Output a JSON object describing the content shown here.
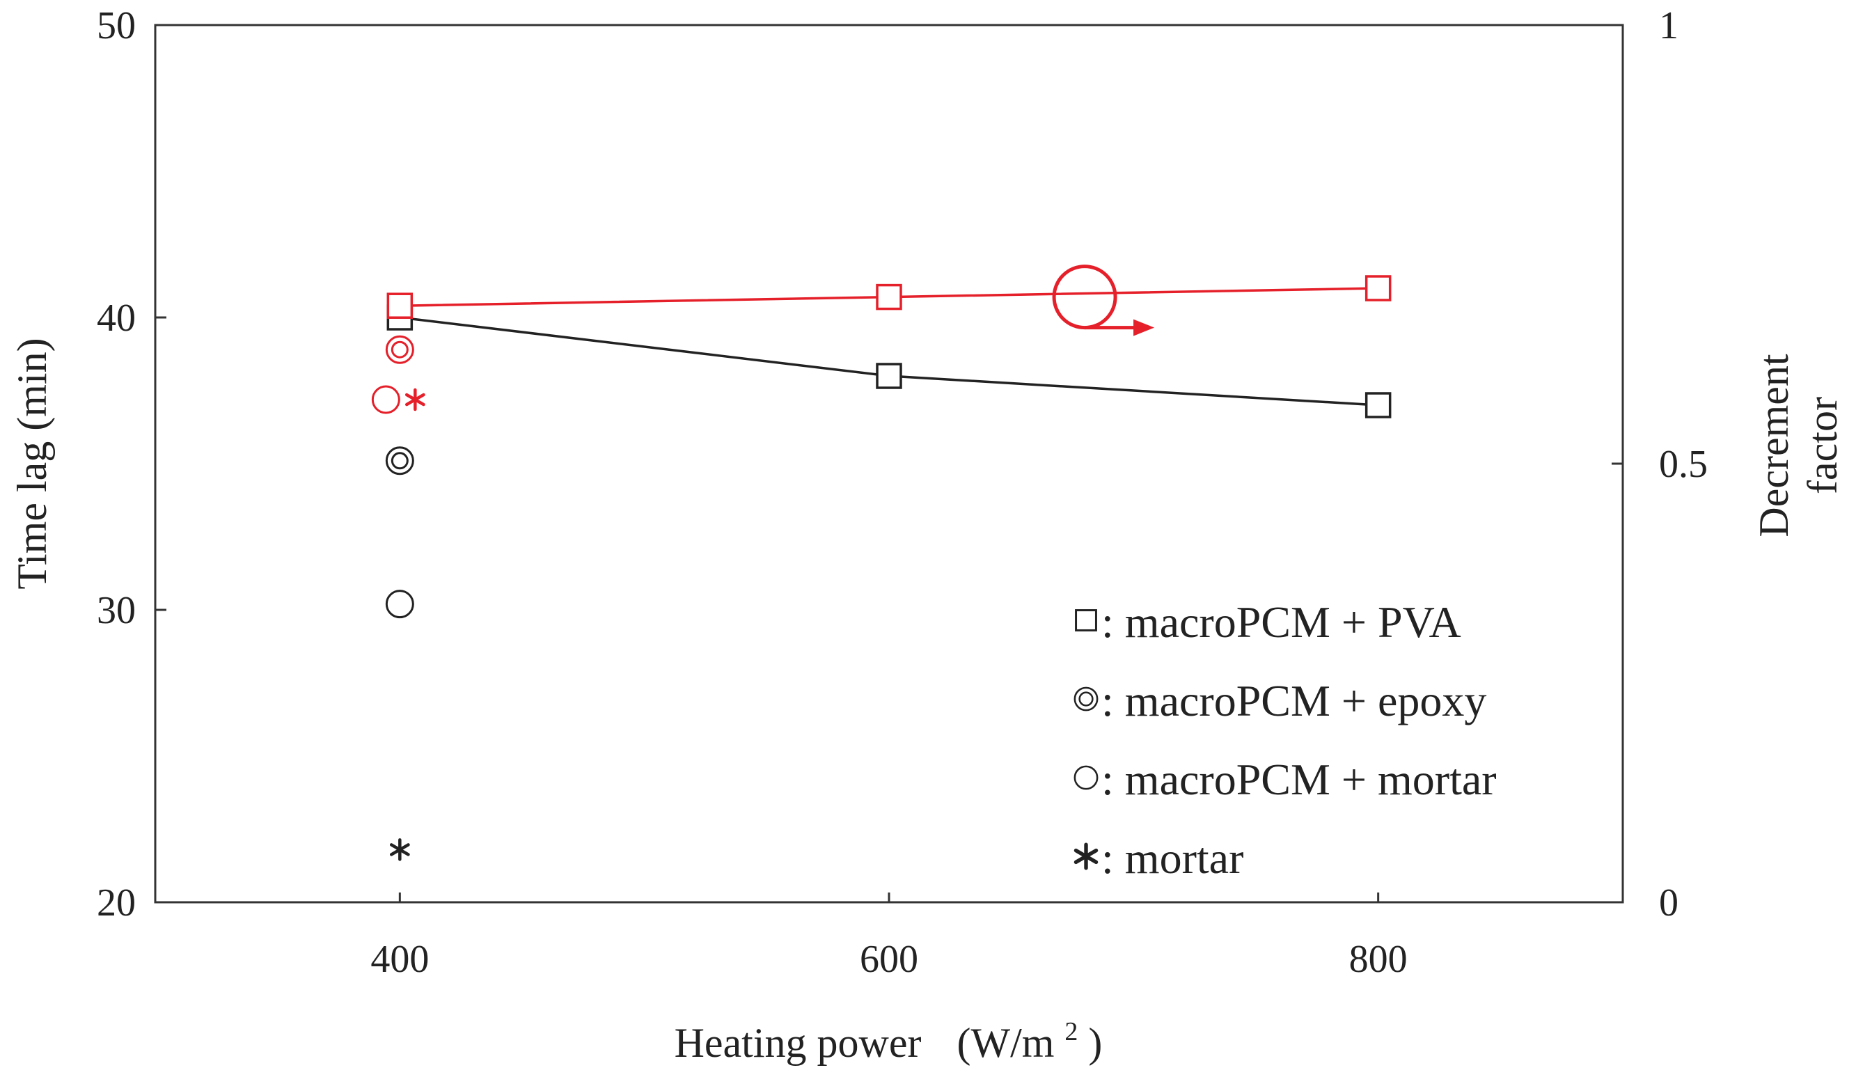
{
  "chart_data": {
    "type": "line",
    "xlabel": "Heating power",
    "xlabel_unit_open": "(W/m",
    "xlabel_unit_sup": "2",
    "xlabel_unit_close": ")",
    "ylabel": "Time lag (min)",
    "y2label_line1": "Decrement",
    "y2label_line2": "factor",
    "xlim": [
      300,
      900
    ],
    "ylim": [
      20,
      50
    ],
    "y2lim": [
      0,
      1
    ],
    "x_ticks": [
      "400",
      "600",
      "800"
    ],
    "y_ticks": [
      "20",
      "30",
      "40",
      "50"
    ],
    "y2_ticks": [
      "0",
      "0.5",
      "1"
    ],
    "series": [
      {
        "name": "macroPCM + PVA (time lag)",
        "axis": "left",
        "color": "#222222",
        "marker": "square",
        "connected": true,
        "points": [
          [
            400,
            40.0
          ],
          [
            600,
            38.0
          ],
          [
            800,
            37.0
          ]
        ]
      },
      {
        "name": "macroPCM + PVA (decrement factor)",
        "axis": "right",
        "color": "#e5202a",
        "marker": "square",
        "connected": true,
        "points": [
          [
            400,
            0.68
          ],
          [
            600,
            0.69
          ],
          [
            800,
            0.7
          ]
        ]
      },
      {
        "name": "macroPCM + epoxy (time lag)",
        "axis": "left",
        "color": "#222222",
        "marker": "double-circle",
        "connected": false,
        "points": [
          [
            400,
            35.1
          ]
        ]
      },
      {
        "name": "macroPCM + mortar (time lag)",
        "axis": "left",
        "color": "#222222",
        "marker": "circle",
        "connected": false,
        "points": [
          [
            400,
            30.2
          ]
        ]
      },
      {
        "name": "mortar (time lag)",
        "axis": "left",
        "color": "#222222",
        "marker": "asterisk",
        "connected": false,
        "points": [
          [
            400,
            21.8
          ]
        ]
      },
      {
        "name": "macroPCM + epoxy (decrement factor)",
        "axis": "right",
        "color": "#e5202a",
        "marker": "double-circle",
        "connected": false,
        "points": [
          [
            400,
            0.63
          ]
        ]
      },
      {
        "name": "macroPCM + mortar (decrement factor)",
        "axis": "right",
        "color": "#e5202a",
        "marker": "circle",
        "connected": false,
        "x_offset": -20,
        "points": [
          [
            400,
            0.573
          ]
        ]
      },
      {
        "name": "mortar (decrement factor)",
        "axis": "right",
        "color": "#e5202a",
        "marker": "asterisk",
        "connected": false,
        "x_offset": 22,
        "points": [
          [
            400,
            0.573
          ]
        ]
      }
    ],
    "annotation": {
      "type": "circle-arrow",
      "color": "#e5202a",
      "meaning": "red series refer to right axis",
      "x": 680,
      "y2": 0.69
    },
    "legend": {
      "placement": "lower-right",
      "entries": [
        {
          "marker": "square",
          "label": "macroPCM + PVA",
          "prefix": ":"
        },
        {
          "marker": "double-circle",
          "label": "macroPCM + epoxy",
          "prefix": ":"
        },
        {
          "marker": "circle",
          "label": "macroPCM + mortar",
          "prefix": ":"
        },
        {
          "marker": "asterisk",
          "label": "mortar",
          "prefix": ":"
        }
      ]
    },
    "grid": false
  }
}
